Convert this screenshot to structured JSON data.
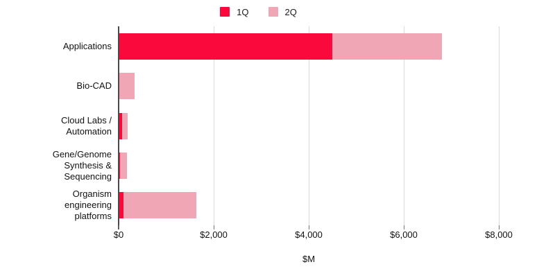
{
  "chart_data": {
    "type": "bar",
    "orientation": "horizontal",
    "stacked": true,
    "categories": [
      "Applications",
      "Bio-CAD",
      "Cloud Labs /\nAutomation",
      "Gene/Genome\nSynthesis &\nSequencing",
      "Organism\nengineering\nplatforms"
    ],
    "series": [
      {
        "name": "1Q",
        "color": "#FA0A3C",
        "values": [
          4500,
          10,
          70,
          30,
          100
        ]
      },
      {
        "name": "2Q",
        "color": "#F0A6B4",
        "values": [
          2300,
          320,
          120,
          145,
          1530
        ]
      }
    ],
    "totals": [
      6800,
      330,
      190,
      175,
      1630
    ],
    "xlabel": "$M",
    "xlim": [
      0,
      8000
    ],
    "xticks": [
      {
        "value": 0,
        "label": "$0"
      },
      {
        "value": 2000,
        "label": "$2,000"
      },
      {
        "value": 4000,
        "label": "$4,000"
      },
      {
        "value": 6000,
        "label": "$6,000"
      },
      {
        "value": 8000,
        "label": "$8,000"
      }
    ],
    "grid": "vertical-on",
    "legend_position": "top-center"
  },
  "colors": {
    "background": "#ffffff",
    "axis": "#4a4a4a",
    "gridline": "#d9d9d9",
    "tick": "#757575",
    "text": "#111111",
    "series_1q": "#FA0A3C",
    "series_2q": "#F0A6B4"
  }
}
